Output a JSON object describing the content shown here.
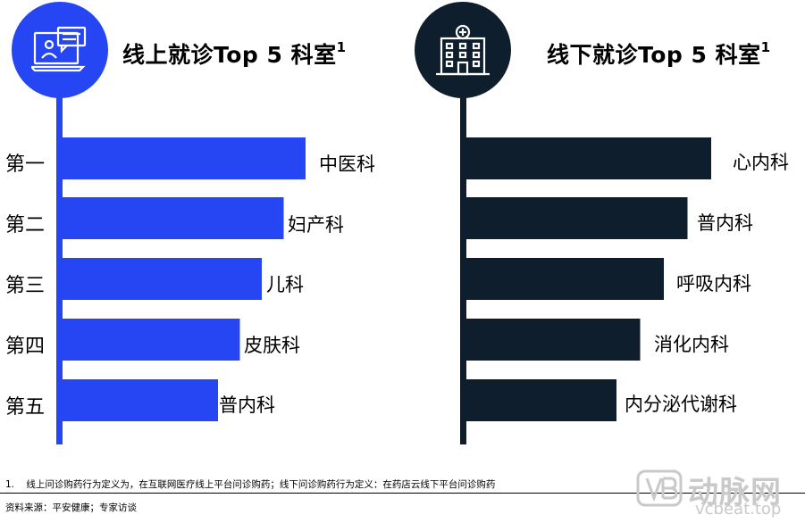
{
  "ranks": [
    "第一",
    "第二",
    "第三",
    "第四",
    "第五"
  ],
  "online": {
    "title": "线上就诊Top 5 科室",
    "title_sup": "1",
    "color": "#2646f4",
    "icon": "online-consultation-icon"
  },
  "offline": {
    "title": "线下就诊Top 5 科室",
    "title_sup": "1",
    "color": "#0f1e2c",
    "icon": "hospital-icon"
  },
  "chart_data": [
    {
      "type": "bar",
      "orientation": "horizontal",
      "title": "线上就诊Top 5 科室",
      "categories": [
        "中医科",
        "妇产科",
        "儿科",
        "皮肤科",
        "普内科"
      ],
      "ranks": [
        "第一",
        "第二",
        "第三",
        "第四",
        "第五"
      ],
      "values": [
        5,
        4,
        3,
        2,
        1
      ],
      "color": "#2646f4"
    },
    {
      "type": "bar",
      "orientation": "horizontal",
      "title": "线下就诊Top 5 科室",
      "categories": [
        "心内科",
        "普内科",
        "呼吸内科",
        "消化内科",
        "内分泌代谢科"
      ],
      "ranks": [
        "第一",
        "第二",
        "第三",
        "第四",
        "第五"
      ],
      "values": [
        5,
        4,
        3,
        2,
        1
      ],
      "color": "#0f1e2c"
    }
  ],
  "footnote": {
    "marker": "1.",
    "text": "线上问诊购药行为定义为，在互联网医疗线上平台问诊购药；线下问诊购药行为定义：在药店云线下平台问诊购药"
  },
  "source": "资料来源：平安健康；专家访谈",
  "watermark": {
    "cn": "动脉网",
    "en": "vcbeat.top"
  }
}
